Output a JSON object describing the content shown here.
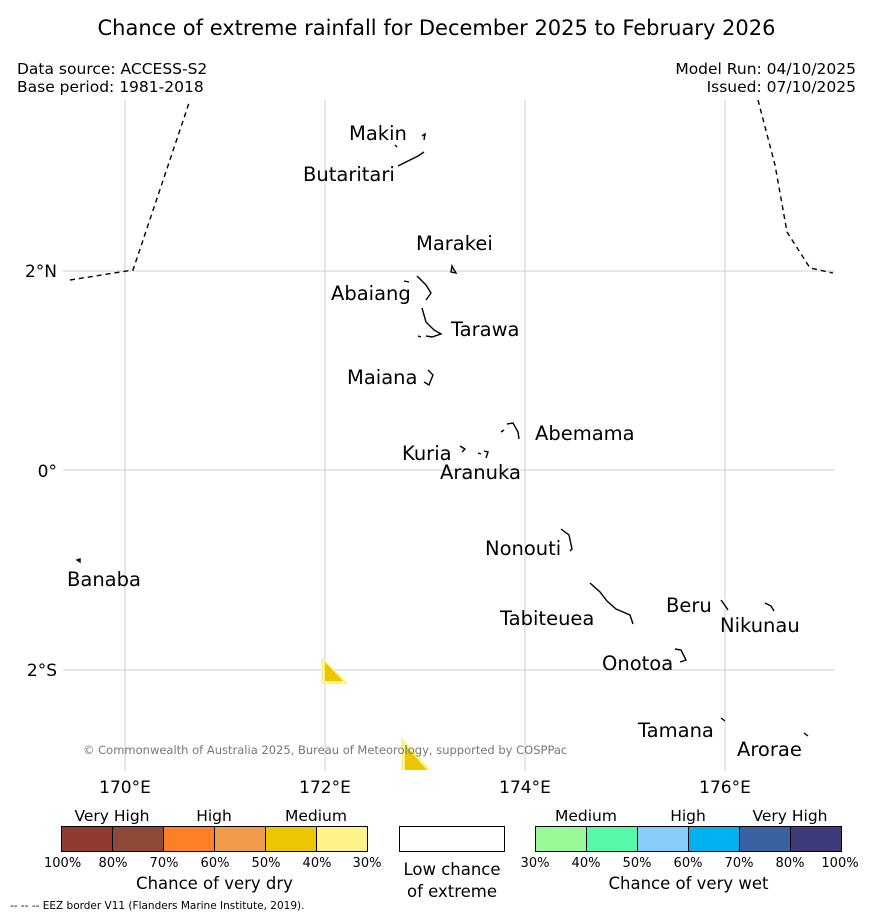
{
  "title": "Chance of extreme rainfall for December 2025 to February 2026",
  "meta": {
    "data_source": "Data source: ACCESS-S2",
    "base_period": "Base period: 1981-2018",
    "model_run": "Model Run: 04/10/2025",
    "issued": "Issued: 07/10/2025"
  },
  "map": {
    "lat_ticks": [
      "2°N",
      "0°",
      "2°S"
    ],
    "lon_ticks": [
      "170°E",
      "172°E",
      "174°E",
      "176°E"
    ],
    "islands": {
      "makin": "Makin",
      "butaritari": "Butaritari",
      "marakei": "Marakei",
      "abaiang": "Abaiang",
      "tarawa": "Tarawa",
      "maiana": "Maiana",
      "abemama": "Abemama",
      "kuria": "Kuria",
      "aranuka": "Aranuka",
      "banaba": "Banaba",
      "nonouti": "Nonouti",
      "tabiteuea": "Tabiteuea",
      "beru": "Beru",
      "nikunau": "Nikunau",
      "onotoa": "Onotoa",
      "tamana": "Tamana",
      "arorae": "Arorae"
    },
    "copyright": "© Commonwealth of Australia 2025, Bureau of Meteorology, supported by COSPPac",
    "overlay_category": "Medium (dry)"
  },
  "legend": {
    "dry": {
      "categories": [
        "Very High",
        "High",
        "Medium"
      ],
      "colors": [
        "#8f3b30",
        "#8e4a37",
        "#fe7f27",
        "#ee9b4a",
        "#ecc600",
        "#fdf489"
      ],
      "ticks": [
        "100%",
        "80%",
        "70%",
        "60%",
        "50%",
        "40%",
        "30%"
      ],
      "title": "Chance of very dry"
    },
    "low": {
      "color": "#ffffff",
      "title_line1": "Low chance",
      "title_line2": "of extreme"
    },
    "wet": {
      "categories": [
        "Medium",
        "High",
        "Very High"
      ],
      "colors": [
        "#98fb98",
        "#55f9a8",
        "#87cdfa",
        "#00b1ef",
        "#3962a2",
        "#3e3b7b"
      ],
      "ticks": [
        "30%",
        "40%",
        "50%",
        "60%",
        "70%",
        "80%",
        "100%"
      ],
      "title": "Chance of very wet"
    }
  },
  "footnote": "-- -- -- EEZ border V11 (Flanders Marine Institute, 2019)."
}
